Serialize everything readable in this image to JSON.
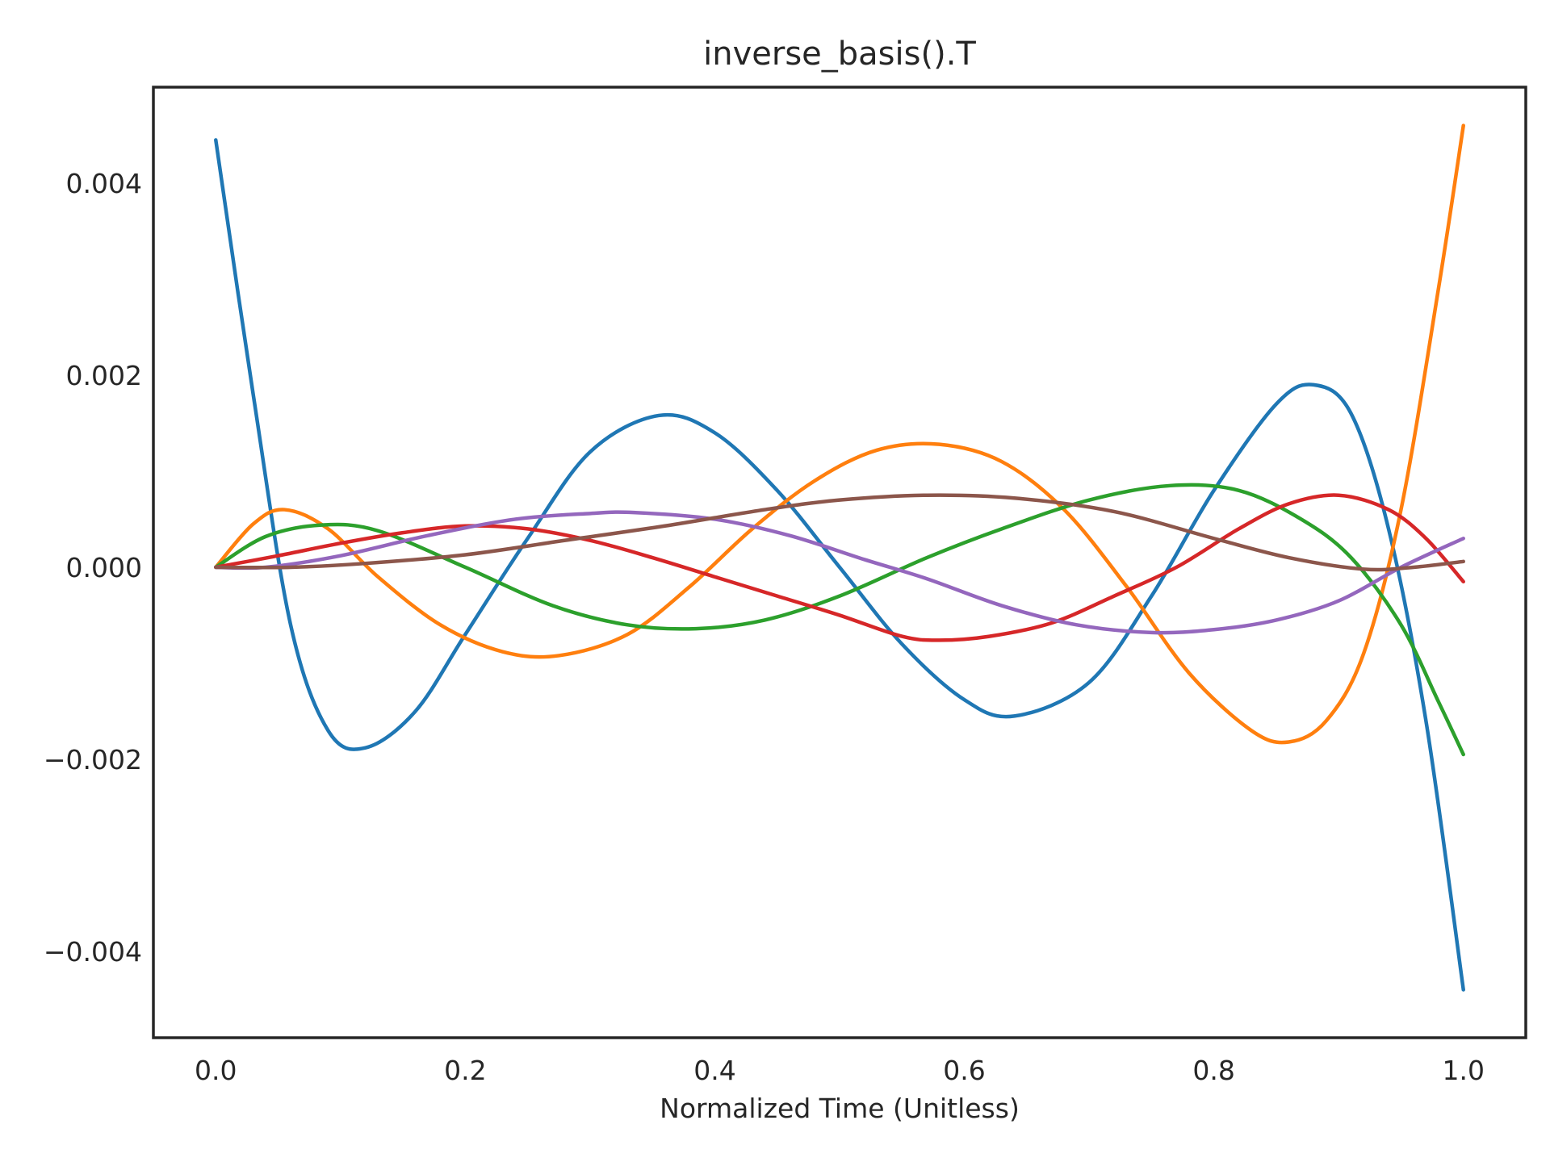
{
  "chart_data": {
    "type": "line",
    "title": "inverse_basis().T",
    "xlabel": "Normalized Time (Unitless)",
    "ylabel": "",
    "xlim": [
      -0.05,
      1.05
    ],
    "ylim": [
      -0.0049,
      0.005
    ],
    "grid": false,
    "legend": "none",
    "x_ticks": [
      0.0,
      0.2,
      0.4,
      0.6,
      0.8,
      1.0
    ],
    "x_tick_labels": [
      "0.0",
      "0.2",
      "0.4",
      "0.6",
      "0.8",
      "1.0"
    ],
    "y_ticks": [
      -0.004,
      -0.002,
      0.0,
      0.002,
      0.004
    ],
    "y_tick_labels": [
      "−0.004",
      "−0.002",
      "0.000",
      "0.002",
      "0.004"
    ],
    "series": [
      {
        "color": "#1f77b4",
        "x": [
          0.0,
          0.03,
          0.06,
          0.09,
          0.12,
          0.16,
          0.2,
          0.25,
          0.3,
          0.355,
          0.4,
          0.45,
          0.5,
          0.55,
          0.6,
          0.64,
          0.7,
          0.75,
          0.8,
          0.85,
          0.88,
          0.91,
          0.94,
          0.97,
          1.0
        ],
        "y": [
          0.00445,
          0.0018,
          -0.0006,
          -0.0017,
          -0.00188,
          -0.0015,
          -0.0007,
          0.0003,
          0.0012,
          0.00158,
          0.0014,
          0.0008,
          0.0,
          -0.0008,
          -0.00138,
          -0.00155,
          -0.0012,
          -0.0003,
          0.0008,
          0.0017,
          0.0019,
          0.0016,
          0.0004,
          -0.0016,
          -0.0044
        ]
      },
      {
        "color": "#ff7f0e",
        "x": [
          0.0,
          0.03,
          0.055,
          0.09,
          0.13,
          0.18,
          0.23,
          0.275,
          0.33,
          0.38,
          0.43,
          0.48,
          0.53,
          0.58,
          0.63,
          0.68,
          0.73,
          0.78,
          0.83,
          0.86,
          0.89,
          0.92,
          0.95,
          0.98,
          1.0
        ],
        "y": [
          0.0,
          0.00045,
          0.0006,
          0.0004,
          -0.0001,
          -0.0006,
          -0.00088,
          -0.00092,
          -0.0007,
          -0.0002,
          0.0004,
          0.0009,
          0.00122,
          0.00128,
          0.0011,
          0.0006,
          -0.0002,
          -0.0011,
          -0.0017,
          -0.00182,
          -0.0016,
          -0.0009,
          0.0006,
          0.0029,
          0.0046
        ]
      },
      {
        "color": "#2ca02c",
        "x": [
          0.0,
          0.04,
          0.085,
          0.13,
          0.2,
          0.27,
          0.33,
          0.385,
          0.44,
          0.5,
          0.57,
          0.63,
          0.7,
          0.765,
          0.82,
          0.87,
          0.91,
          0.95,
          0.98,
          1.0
        ],
        "y": [
          0.0,
          0.00032,
          0.00044,
          0.00038,
          0.0,
          -0.0004,
          -0.0006,
          -0.00064,
          -0.00055,
          -0.0003,
          0.0001,
          0.0004,
          0.0007,
          0.00085,
          0.0008,
          0.0005,
          0.0001,
          -0.0006,
          -0.0014,
          -0.00195
        ]
      },
      {
        "color": "#d62728",
        "x": [
          0.0,
          0.05,
          0.1,
          0.15,
          0.2,
          0.25,
          0.3,
          0.35,
          0.4,
          0.45,
          0.5,
          0.55,
          0.58,
          0.62,
          0.67,
          0.72,
          0.77,
          0.82,
          0.86,
          0.9,
          0.94,
          0.97,
          1.0
        ],
        "y": [
          0.0,
          0.00012,
          0.00025,
          0.00036,
          0.00043,
          0.0004,
          0.00028,
          0.0001,
          -0.0001,
          -0.0003,
          -0.0005,
          -0.00072,
          -0.00076,
          -0.00072,
          -0.00058,
          -0.0003,
          0.0,
          0.0004,
          0.00066,
          0.00075,
          0.0006,
          0.0003,
          -0.00015
        ]
      },
      {
        "color": "#9467bd",
        "x": [
          0.0,
          0.04,
          0.1,
          0.17,
          0.24,
          0.3,
          0.335,
          0.4,
          0.46,
          0.52,
          0.57,
          0.63,
          0.69,
          0.75,
          0.8,
          0.85,
          0.9,
          0.95,
          1.0
        ],
        "y": [
          0.0,
          0.0,
          0.00012,
          0.00033,
          0.0005,
          0.00056,
          0.00057,
          0.0005,
          0.00033,
          8e-05,
          -0.00012,
          -0.0004,
          -0.0006,
          -0.00068,
          -0.00065,
          -0.00055,
          -0.00035,
          0.0,
          0.0003
        ]
      },
      {
        "color": "#8c564b",
        "x": [
          0.0,
          0.06,
          0.12,
          0.2,
          0.28,
          0.36,
          0.44,
          0.5,
          0.57,
          0.64,
          0.72,
          0.8,
          0.86,
          0.92,
          0.96,
          1.0
        ],
        "y": [
          0.0,
          0.0,
          4e-05,
          0.00013,
          0.00028,
          0.00043,
          0.0006,
          0.0007,
          0.00075,
          0.00072,
          0.00058,
          0.0003,
          0.0001,
          -2e-05,
          0.0,
          6e-05
        ]
      }
    ]
  }
}
